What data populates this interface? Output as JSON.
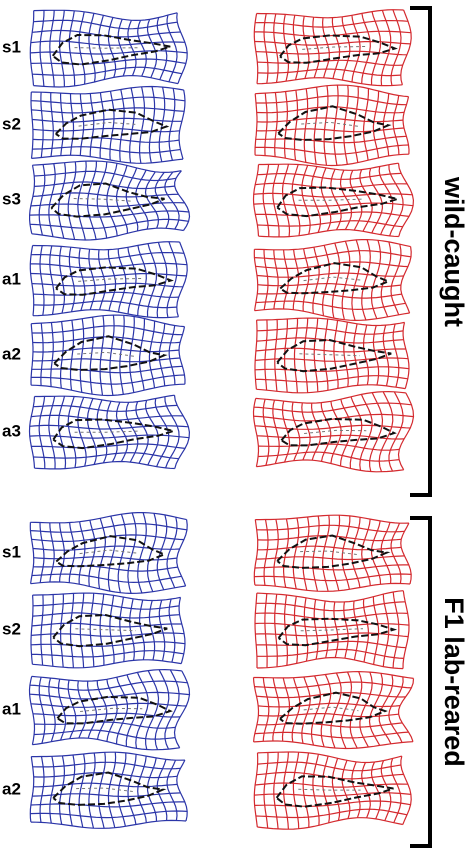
{
  "groups": [
    {
      "label": "wild-caught",
      "rows": [
        "s1",
        "s2",
        "s3",
        "a1",
        "a2",
        "a3"
      ]
    },
    {
      "label": "F1 lab-reared",
      "rows": [
        "s1",
        "s2",
        "a1",
        "a2"
      ]
    }
  ]
}
